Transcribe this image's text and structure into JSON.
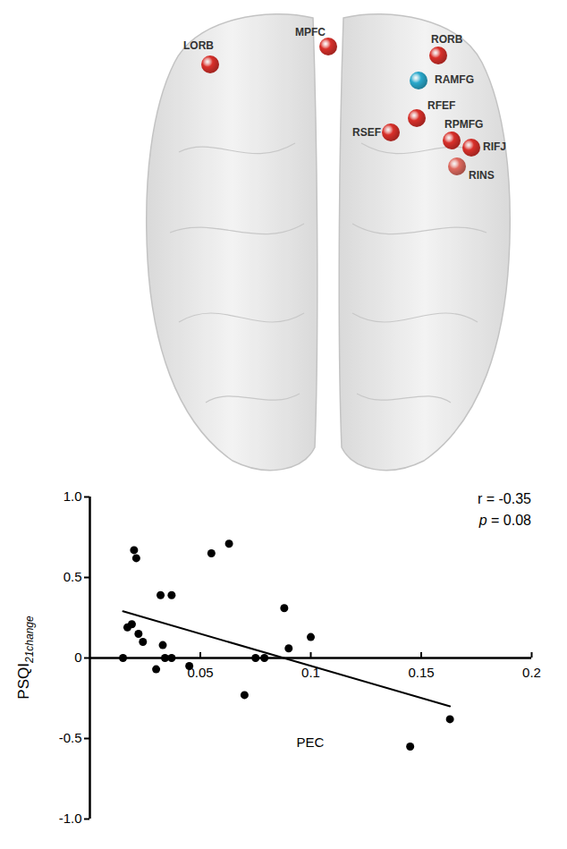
{
  "brain": {
    "nodes": [
      {
        "label": "LORB",
        "color": "#d9302a"
      },
      {
        "label": "MPFC",
        "color": "#d9302a"
      },
      {
        "label": "RORB",
        "color": "#d9302a"
      },
      {
        "label": "RAMFG",
        "color": "#2aa9cc"
      },
      {
        "label": "RFEF",
        "color": "#d9302a"
      },
      {
        "label": "RSEF",
        "color": "#d9302a"
      },
      {
        "label": "RPMFG",
        "color": "#d9302a"
      },
      {
        "label": "RIFJ",
        "color": "#d9302a"
      },
      {
        "label": "RINS",
        "color": "#e06a60"
      }
    ]
  },
  "chart_data": {
    "type": "scatter",
    "xlabel": "PEC",
    "ylabel": "PSQI",
    "ylabel_subscript": "21change",
    "annotations": [
      "r = -0.35",
      "p = 0.08"
    ],
    "color": "#000000",
    "x": [
      0.015,
      0.017,
      0.019,
      0.02,
      0.021,
      0.022,
      0.024,
      0.03,
      0.032,
      0.033,
      0.034,
      0.037,
      0.037,
      0.045,
      0.055,
      0.063,
      0.07,
      0.075,
      0.079,
      0.088,
      0.09,
      0.1,
      0.145,
      0.163
    ],
    "values": [
      0.0,
      0.19,
      0.21,
      0.67,
      0.62,
      0.15,
      0.1,
      -0.07,
      0.39,
      0.08,
      0.0,
      0.39,
      0.0,
      -0.05,
      0.65,
      0.71,
      -0.23,
      0.0,
      0.0,
      0.31,
      0.06,
      0.13,
      -0.55,
      -0.38
    ],
    "fit_line": {
      "x": [
        0.015,
        0.163
      ],
      "values": [
        0.29,
        -0.3
      ]
    },
    "xlim": [
      0,
      0.2
    ],
    "xticks": [
      0.05,
      0.1,
      0.15,
      0.2
    ],
    "ylim": [
      -1,
      1
    ],
    "yticks": [
      {
        "value": -1,
        "label": "-1.0"
      },
      {
        "value": -0.5,
        "label": "-0.5"
      },
      0,
      0.5,
      {
        "value": 1,
        "label": "1.0"
      }
    ],
    "grid": false
  }
}
